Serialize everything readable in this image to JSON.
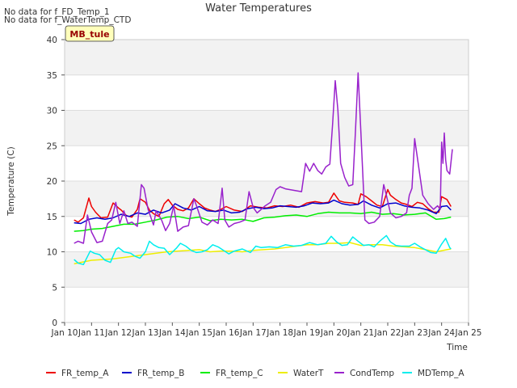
{
  "notices": [
    "No data for f_FD_Temp_1",
    "No data for f_WaterTemp_CTD"
  ],
  "site_badge": "MB_tule",
  "chart_data": {
    "type": "line",
    "title": "Water Temperatures",
    "xlabel": "Time",
    "ylabel": "Temperature (C)",
    "xlim": [
      10,
      25
    ],
    "ylim": [
      0,
      40
    ],
    "x_ticks": [
      {
        "value": 10,
        "label": "Jan 10"
      },
      {
        "value": 11,
        "label": "Jan 11"
      },
      {
        "value": 12,
        "label": "Jan 12"
      },
      {
        "value": 13,
        "label": "Jan 13"
      },
      {
        "value": 14,
        "label": "Jan 14"
      },
      {
        "value": 15,
        "label": "Jan 15"
      },
      {
        "value": 16,
        "label": "Jan 16"
      },
      {
        "value": 17,
        "label": "Jan 17"
      },
      {
        "value": 18,
        "label": "Jan 18"
      },
      {
        "value": 19,
        "label": "Jan 19"
      },
      {
        "value": 20,
        "label": "Jan 20"
      },
      {
        "value": 21,
        "label": "Jan 21"
      },
      {
        "value": 22,
        "label": "Jan 22"
      },
      {
        "value": 23,
        "label": "Jan 23"
      },
      {
        "value": 24,
        "label": "Jan 24"
      },
      {
        "value": 25,
        "label": "Jan 25"
      }
    ],
    "y_ticks": [
      0,
      5,
      10,
      15,
      20,
      25,
      30,
      35,
      40
    ],
    "grid": true,
    "legend_position": "bottom",
    "series": [
      {
        "name": "FR_temp_A",
        "color": "#ee0000",
        "x": [
          10.35,
          10.5,
          10.7,
          10.9,
          11.0,
          11.15,
          11.35,
          11.6,
          11.8,
          12.0,
          12.1,
          12.3,
          12.5,
          12.7,
          12.8,
          13.0,
          13.15,
          13.3,
          13.5,
          13.7,
          13.85,
          14.0,
          14.2,
          14.4,
          14.6,
          14.8,
          15.0,
          15.2,
          15.4,
          15.6,
          15.8,
          16.0,
          16.3,
          16.6,
          16.9,
          17.2,
          17.5,
          17.8,
          18.1,
          18.4,
          18.7,
          19.0,
          19.3,
          19.6,
          19.8,
          20.0,
          20.2,
          20.4,
          20.7,
          20.9,
          21.0,
          21.2,
          21.4,
          21.6,
          21.8,
          22.0,
          22.1,
          22.3,
          22.5,
          22.7,
          22.9,
          23.1,
          23.3,
          23.5,
          23.7,
          23.9,
          24.0,
          24.2,
          24.35
        ],
        "y": [
          14.5,
          14.2,
          14.8,
          17.6,
          16.4,
          15.6,
          14.8,
          14.9,
          16.9,
          16.2,
          15.9,
          15.1,
          14.9,
          16.0,
          17.5,
          17.0,
          15.9,
          15.4,
          15.0,
          16.8,
          17.4,
          16.6,
          16.0,
          15.8,
          16.2,
          17.5,
          16.8,
          16.2,
          15.9,
          15.7,
          16.0,
          16.4,
          15.9,
          15.7,
          16.5,
          16.3,
          16.2,
          16.5,
          16.4,
          16.6,
          16.3,
          16.9,
          17.1,
          16.9,
          17.0,
          18.3,
          17.2,
          17.0,
          16.9,
          16.7,
          18.2,
          17.8,
          17.2,
          16.6,
          16.4,
          18.8,
          18.0,
          17.4,
          16.9,
          16.7,
          16.4,
          17.0,
          16.8,
          16.1,
          15.6,
          15.6,
          17.8,
          17.4,
          16.4
        ]
      },
      {
        "name": "FR_temp_B",
        "color": "#0000cc",
        "x": [
          10.35,
          10.6,
          10.9,
          11.2,
          11.5,
          11.8,
          12.1,
          12.4,
          12.7,
          13.0,
          13.3,
          13.6,
          13.9,
          14.1,
          14.4,
          14.7,
          15.0,
          15.3,
          15.6,
          15.9,
          16.2,
          16.5,
          16.8,
          17.1,
          17.4,
          17.7,
          18.0,
          18.3,
          18.6,
          18.9,
          19.2,
          19.5,
          19.8,
          20.0,
          20.3,
          20.6,
          20.9,
          21.1,
          21.4,
          21.7,
          22.0,
          22.3,
          22.6,
          22.9,
          23.2,
          23.5,
          23.8,
          24.0,
          24.2,
          24.35
        ],
        "y": [
          14.1,
          14.0,
          14.6,
          14.8,
          14.6,
          14.8,
          15.3,
          15.0,
          15.5,
          15.3,
          15.9,
          15.5,
          15.9,
          16.8,
          16.2,
          15.9,
          16.4,
          15.8,
          15.7,
          15.9,
          15.5,
          15.6,
          16.1,
          16.3,
          16.1,
          16.2,
          16.5,
          16.4,
          16.3,
          16.5,
          16.9,
          16.8,
          16.9,
          17.3,
          16.8,
          16.6,
          16.7,
          17.2,
          16.6,
          16.2,
          16.8,
          16.9,
          16.5,
          16.3,
          16.2,
          15.9,
          15.4,
          16.4,
          16.5,
          15.9
        ]
      },
      {
        "name": "FR_temp_C",
        "color": "#00ee00",
        "x": [
          10.35,
          10.7,
          11.0,
          11.4,
          11.8,
          12.2,
          12.6,
          13.0,
          13.4,
          13.8,
          14.2,
          14.6,
          15.0,
          15.4,
          15.8,
          16.2,
          16.6,
          17.0,
          17.4,
          17.8,
          18.2,
          18.6,
          19.0,
          19.4,
          19.8,
          20.2,
          20.6,
          21.0,
          21.4,
          21.8,
          22.2,
          22.6,
          23.0,
          23.4,
          23.8,
          24.1,
          24.35
        ],
        "y": [
          12.9,
          13.0,
          13.2,
          13.3,
          13.6,
          13.9,
          13.9,
          14.2,
          14.5,
          14.9,
          15.0,
          14.7,
          14.9,
          14.4,
          14.6,
          14.5,
          14.6,
          14.3,
          14.8,
          14.9,
          15.1,
          15.2,
          15.0,
          15.4,
          15.6,
          15.5,
          15.5,
          15.4,
          15.6,
          15.3,
          15.4,
          15.2,
          15.3,
          15.5,
          14.6,
          14.7,
          14.9
        ]
      },
      {
        "name": "WaterT",
        "color": "#eeee00",
        "x": [
          10.35,
          10.6,
          11.0,
          11.4,
          11.8,
          12.2,
          12.6,
          13.0,
          13.4,
          13.8,
          14.2,
          14.6,
          15.0,
          15.4,
          15.8,
          16.2,
          16.6,
          17.0,
          17.4,
          17.8,
          18.2,
          18.6,
          19.0,
          19.4,
          19.8,
          20.2,
          20.6,
          21.0,
          21.4,
          21.8,
          22.2,
          22.6,
          23.0,
          23.4,
          23.8,
          24.2,
          24.35
        ],
        "y": [
          8.3,
          8.5,
          8.8,
          8.9,
          9.0,
          9.2,
          9.4,
          9.6,
          9.8,
          10.0,
          10.1,
          10.2,
          10.3,
          10.0,
          10.1,
          10.1,
          10.0,
          10.2,
          10.3,
          10.4,
          10.6,
          10.8,
          11.0,
          11.0,
          11.2,
          11.2,
          11.3,
          10.9,
          11.0,
          11.0,
          10.8,
          10.7,
          10.6,
          10.3,
          10.0,
          10.3,
          10.4
        ]
      },
      {
        "name": "CondTemp",
        "color": "#9922cc",
        "x": [
          10.35,
          10.5,
          10.7,
          10.85,
          11.0,
          11.2,
          11.4,
          11.6,
          11.75,
          11.9,
          12.05,
          12.2,
          12.35,
          12.5,
          12.7,
          12.85,
          12.95,
          13.1,
          13.3,
          13.4,
          13.6,
          13.75,
          13.9,
          14.05,
          14.2,
          14.4,
          14.6,
          14.8,
          14.9,
          15.1,
          15.3,
          15.5,
          15.7,
          15.85,
          15.95,
          16.1,
          16.3,
          16.5,
          16.7,
          16.85,
          17.0,
          17.15,
          17.3,
          17.45,
          17.65,
          17.85,
          18.0,
          18.2,
          18.5,
          18.8,
          18.95,
          19.1,
          19.25,
          19.4,
          19.55,
          19.7,
          19.85,
          19.95,
          20.05,
          20.15,
          20.25,
          20.4,
          20.55,
          20.7,
          20.8,
          20.9,
          21.0,
          21.15,
          21.3,
          21.5,
          21.7,
          21.85,
          21.95,
          22.1,
          22.3,
          22.5,
          22.7,
          22.8,
          22.9,
          23.0,
          23.15,
          23.3,
          23.5,
          23.7,
          23.85,
          23.95,
          24.0,
          24.05,
          24.1,
          24.15,
          24.2,
          24.3,
          24.4
        ],
        "y": [
          11.2,
          11.5,
          11.2,
          15.2,
          12.8,
          11.3,
          11.5,
          14.0,
          14.5,
          17.0,
          14.0,
          15.8,
          14.0,
          14.2,
          13.6,
          19.5,
          19.0,
          16.0,
          13.8,
          15.8,
          14.5,
          13.0,
          14.0,
          16.5,
          12.9,
          13.5,
          13.7,
          17.5,
          16.5,
          14.2,
          13.8,
          14.5,
          14.0,
          19.0,
          14.5,
          13.5,
          14.0,
          14.2,
          14.5,
          18.5,
          16.3,
          15.5,
          16.0,
          16.5,
          17.0,
          18.8,
          19.2,
          18.9,
          18.7,
          18.5,
          22.5,
          21.4,
          22.5,
          21.5,
          21.0,
          22.0,
          22.4,
          28.0,
          34.2,
          30.0,
          22.5,
          20.5,
          19.3,
          19.5,
          27.0,
          35.3,
          27.0,
          14.5,
          14.0,
          14.2,
          15.0,
          19.5,
          18.0,
          15.5,
          14.8,
          15.0,
          15.5,
          18.0,
          19.0,
          26.0,
          22.0,
          18.0,
          16.8,
          16.0,
          16.5,
          16.0,
          25.5,
          22.5,
          26.8,
          23.0,
          21.5,
          21.0,
          24.5
        ]
      },
      {
        "name": "MDTemp_A",
        "color": "#00eeee",
        "x": [
          10.35,
          10.5,
          10.7,
          10.95,
          11.1,
          11.3,
          11.5,
          11.7,
          11.9,
          12.0,
          12.2,
          12.45,
          12.6,
          12.8,
          13.0,
          13.15,
          13.3,
          13.5,
          13.7,
          13.9,
          14.15,
          14.3,
          14.5,
          14.7,
          14.9,
          15.1,
          15.3,
          15.5,
          15.7,
          15.9,
          16.1,
          16.3,
          16.6,
          16.9,
          17.1,
          17.3,
          17.6,
          17.9,
          18.2,
          18.5,
          18.8,
          19.1,
          19.4,
          19.7,
          19.9,
          20.1,
          20.3,
          20.5,
          20.7,
          20.9,
          21.1,
          21.3,
          21.5,
          21.7,
          21.95,
          22.1,
          22.3,
          22.5,
          22.8,
          23.0,
          23.2,
          23.4,
          23.6,
          23.8,
          24.0,
          24.15,
          24.3,
          24.35
        ],
        "y": [
          8.9,
          8.4,
          8.2,
          10.1,
          9.8,
          9.6,
          8.8,
          8.5,
          10.3,
          10.6,
          10.0,
          9.8,
          9.4,
          9.1,
          10.0,
          11.5,
          11.0,
          10.6,
          10.5,
          9.6,
          10.5,
          11.2,
          10.8,
          10.2,
          9.9,
          10.0,
          10.3,
          11.0,
          10.7,
          10.2,
          9.7,
          10.1,
          10.4,
          9.9,
          10.8,
          10.6,
          10.7,
          10.6,
          11.0,
          10.8,
          10.9,
          11.3,
          11.0,
          11.2,
          12.2,
          11.4,
          10.9,
          11.0,
          12.1,
          11.5,
          10.9,
          11.0,
          10.7,
          11.5,
          12.3,
          11.4,
          10.9,
          10.8,
          10.8,
          11.2,
          10.7,
          10.3,
          9.9,
          9.8,
          11.1,
          11.9,
          10.6,
          10.4
        ]
      }
    ]
  }
}
